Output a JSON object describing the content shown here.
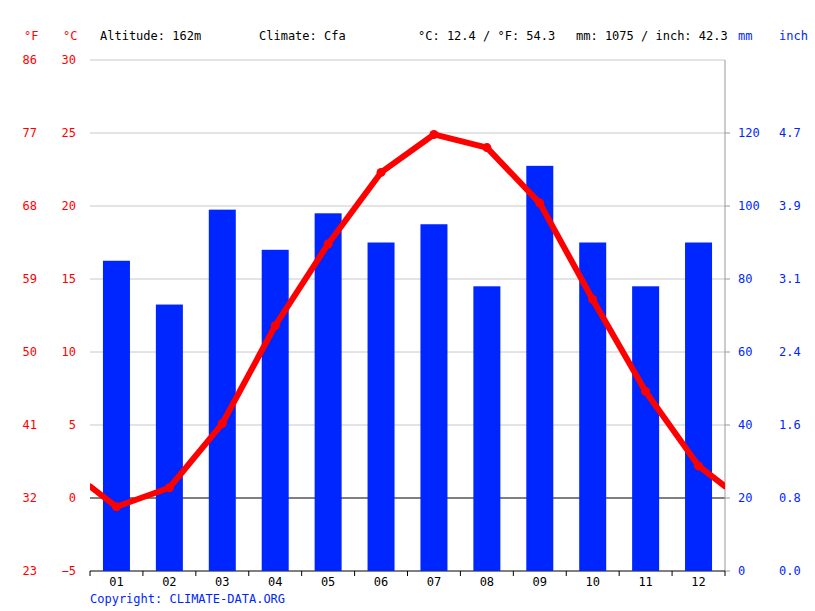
{
  "chart_data": {
    "type": "bar",
    "categories": [
      "01",
      "02",
      "03",
      "04",
      "05",
      "06",
      "07",
      "08",
      "09",
      "10",
      "11",
      "12"
    ],
    "series": [
      {
        "type": "bar",
        "axis": "y2",
        "color": "#0026ff",
        "values": [
          85,
          73,
          99,
          88,
          98,
          90,
          95,
          78,
          111,
          90,
          78,
          90
        ]
      },
      {
        "type": "line",
        "color": "#ff0000",
        "marker": "circle",
        "values": [
          -0.6,
          0.7,
          5.1,
          11.8,
          17.4,
          22.3,
          24.9,
          24.0,
          20.2,
          13.6,
          7.3,
          2.2
        ]
      }
    ],
    "ylim": [
      -5,
      30
    ],
    "yticks": [
      {
        "value": -5,
        "label": "−5"
      },
      0,
      5,
      10,
      15,
      20,
      25,
      30
    ],
    "y_alt_ticks": [
      {
        "value": -5,
        "label": "23"
      },
      {
        "value": 0,
        "label": "32"
      },
      {
        "value": 5,
        "label": "41"
      },
      {
        "value": 10,
        "label": "50"
      },
      {
        "value": 15,
        "label": "59"
      },
      {
        "value": 20,
        "label": "68"
      },
      {
        "value": 25,
        "label": "77"
      },
      {
        "value": 30,
        "label": "86"
      }
    ],
    "y_label": "°C",
    "y_alt_label": "°F",
    "y2lim": [
      0,
      140
    ],
    "y2ticks": [
      {
        "value": 0,
        "label": "0"
      },
      20,
      40,
      60,
      80,
      100,
      120
    ],
    "y2_alt_ticks": [
      {
        "value": 0,
        "label": "0.0"
      },
      {
        "value": 20,
        "label": "0.8"
      },
      {
        "value": 40,
        "label": "1.6"
      },
      {
        "value": 60,
        "label": "2.4"
      },
      {
        "value": 80,
        "label": "3.1"
      },
      {
        "value": 100,
        "label": "3.9"
      },
      {
        "value": 120,
        "label": "4.7"
      }
    ],
    "y2_label": "mm",
    "y2_alt_label": "inch",
    "annotations": [
      "Altitude: 162m",
      "Climate: Cfa",
      "°C: 12.4 / °F: 54.3",
      "mm: 1075 / inch: 42.3",
      "Copyright: CLIMATE-DATA.ORG"
    ],
    "grid": true
  }
}
